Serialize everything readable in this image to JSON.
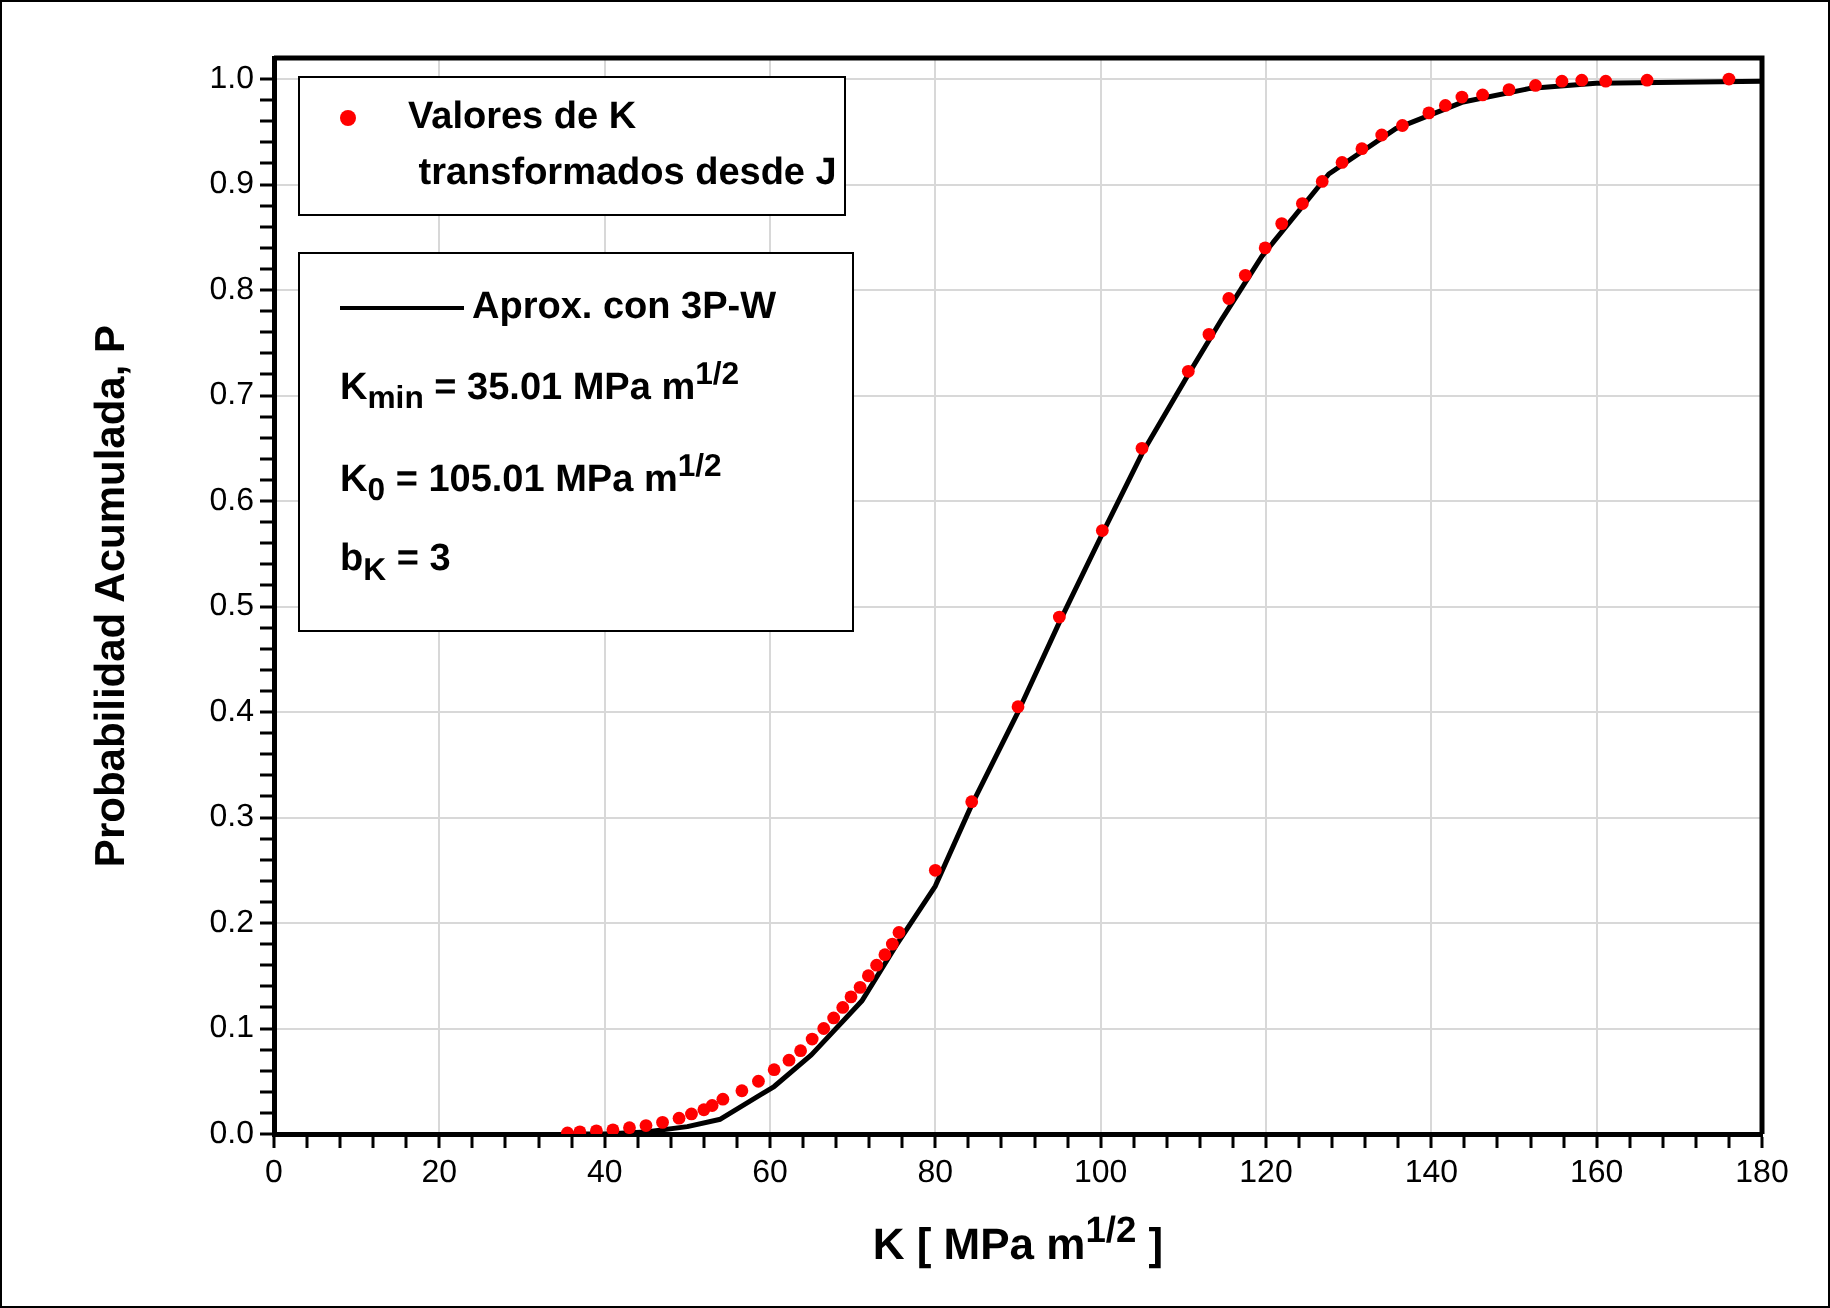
{
  "chart_data": {
    "type": "scatter",
    "xlabel": "K  [ MPa  m$^{1/2}$ ]",
    "ylabel": "Probabilidad Acumulada, P",
    "xlim": [
      0,
      180
    ],
    "ylim": [
      0,
      1.02
    ],
    "xticks": [
      0,
      {
        "value": 4,
        "label": null
      },
      {
        "value": 8,
        "label": null
      },
      {
        "value": 12,
        "label": null
      },
      {
        "value": 16,
        "label": null
      },
      20,
      {
        "value": 24,
        "label": null
      },
      {
        "value": 28,
        "label": null
      },
      {
        "value": 32,
        "label": null
      },
      {
        "value": 36,
        "label": null
      },
      40,
      {
        "value": 44,
        "label": null
      },
      {
        "value": 48,
        "label": null
      },
      {
        "value": 52,
        "label": null
      },
      {
        "value": 56,
        "label": null
      },
      60,
      {
        "value": 64,
        "label": null
      },
      {
        "value": 68,
        "label": null
      },
      {
        "value": 72,
        "label": null
      },
      {
        "value": 76,
        "label": null
      },
      80,
      {
        "value": 84,
        "label": null
      },
      {
        "value": 88,
        "label": null
      },
      {
        "value": 92,
        "label": null
      },
      {
        "value": 96,
        "label": null
      },
      100,
      {
        "value": 104,
        "label": null
      },
      {
        "value": 108,
        "label": null
      },
      {
        "value": 112,
        "label": null
      },
      {
        "value": 116,
        "label": null
      },
      120,
      {
        "value": 124,
        "label": null
      },
      {
        "value": 128,
        "label": null
      },
      {
        "value": 132,
        "label": null
      },
      {
        "value": 136,
        "label": null
      },
      140,
      {
        "value": 144,
        "label": null
      },
      {
        "value": 148,
        "label": null
      },
      {
        "value": 152,
        "label": null
      },
      {
        "value": 156,
        "label": null
      },
      160,
      {
        "value": 164,
        "label": null
      },
      {
        "value": 168,
        "label": null
      },
      {
        "value": 172,
        "label": null
      },
      {
        "value": 176,
        "label": null
      },
      180
    ],
    "yticks": [
      {
        "value": 0,
        "label": "0.0"
      },
      {
        "value": 0.02,
        "label": null
      },
      {
        "value": 0.04,
        "label": null
      },
      {
        "value": 0.06,
        "label": null
      },
      {
        "value": 0.08,
        "label": null
      },
      0.1,
      {
        "value": 0.12,
        "label": null
      },
      {
        "value": 0.14,
        "label": null
      },
      {
        "value": 0.16,
        "label": null
      },
      {
        "value": 0.18,
        "label": null
      },
      0.2,
      {
        "value": 0.22,
        "label": null
      },
      {
        "value": 0.24,
        "label": null
      },
      {
        "value": 0.26,
        "label": null
      },
      {
        "value": 0.28,
        "label": null
      },
      0.3,
      {
        "value": 0.32,
        "label": null
      },
      {
        "value": 0.34,
        "label": null
      },
      {
        "value": 0.36,
        "label": null
      },
      {
        "value": 0.38,
        "label": null
      },
      0.4,
      {
        "value": 0.42,
        "label": null
      },
      {
        "value": 0.44,
        "label": null
      },
      {
        "value": 0.46,
        "label": null
      },
      {
        "value": 0.48,
        "label": null
      },
      0.5,
      {
        "value": 0.52,
        "label": null
      },
      {
        "value": 0.54,
        "label": null
      },
      {
        "value": 0.56,
        "label": null
      },
      {
        "value": 0.58,
        "label": null
      },
      0.6,
      {
        "value": 0.62,
        "label": null
      },
      {
        "value": 0.64,
        "label": null
      },
      {
        "value": 0.66,
        "label": null
      },
      {
        "value": 0.68,
        "label": null
      },
      0.7,
      {
        "value": 0.72,
        "label": null
      },
      {
        "value": 0.74,
        "label": null
      },
      {
        "value": 0.76,
        "label": null
      },
      {
        "value": 0.78,
        "label": null
      },
      0.8,
      {
        "value": 0.82,
        "label": null
      },
      {
        "value": 0.84,
        "label": null
      },
      {
        "value": 0.86,
        "label": null
      },
      {
        "value": 0.88,
        "label": null
      },
      0.9,
      {
        "value": 0.92,
        "label": null
      },
      {
        "value": 0.94,
        "label": null
      },
      {
        "value": 0.96,
        "label": null
      },
      {
        "value": 0.98,
        "label": null
      },
      {
        "value": 1,
        "label": "1.0"
      }
    ],
    "grid": true,
    "legend": "top left",
    "marker": "circle",
    "series": [
      {
        "name": "Valores de K\n transformados desde J",
        "color": "#ff0000",
        "x": [
          35.5,
          37,
          39,
          41,
          43,
          45,
          47,
          49,
          50.5,
          52,
          53,
          54.3,
          56.6,
          58.6,
          60.5,
          62.3,
          63.7,
          65.1,
          66.5,
          67.7,
          68.8,
          69.8,
          70.9,
          71.9,
          72.9,
          73.9,
          74.8,
          75.6,
          80,
          84.4,
          90,
          95,
          100.2,
          105,
          110.6,
          113.1,
          115.5,
          117.5,
          119.9,
          121.9,
          124.4,
          126.8,
          129.2,
          131.6,
          134,
          136.5,
          139.7,
          141.7,
          143.7,
          146.2,
          149.4,
          152.6,
          155.8,
          158.2,
          161.1,
          166.1,
          176
        ],
        "values": [
          0.001,
          0.002,
          0.003,
          0.004,
          0.006,
          0.008,
          0.011,
          0.015,
          0.019,
          0.023,
          0.027,
          0.033,
          0.041,
          0.05,
          0.061,
          0.07,
          0.079,
          0.09,
          0.1,
          0.11,
          0.12,
          0.13,
          0.139,
          0.15,
          0.16,
          0.17,
          0.18,
          0.191,
          0.25,
          0.315,
          0.405,
          0.49,
          0.572,
          0.65,
          0.723,
          0.758,
          0.792,
          0.814,
          0.84,
          0.863,
          0.882,
          0.903,
          0.921,
          0.934,
          0.947,
          0.956,
          0.968,
          0.975,
          0.983,
          0.985,
          0.99,
          0.994,
          0.998,
          0.999,
          0.998,
          0.999,
          1.0
        ]
      },
      {
        "name": "Aprox. con 3P-W",
        "type": "line",
        "color": "#000000",
        "marker": "none",
        "line_style": "solid",
        "x": [
          35.01,
          40,
          45,
          50,
          54,
          60.5,
          65,
          71.1,
          75.2,
          80,
          84.4,
          90,
          95,
          100.2,
          105,
          110.6,
          114.7,
          119.5,
          127.6,
          135.7,
          143.7,
          151.8,
          159.9,
          180
        ],
        "values": [
          0,
          0,
          0.002,
          0.007,
          0.014,
          0.045,
          0.075,
          0.126,
          0.178,
          0.235,
          0.312,
          0.4,
          0.485,
          0.569,
          0.645,
          0.72,
          0.773,
          0.832,
          0.91,
          0.953,
          0.978,
          0.991,
          0.996,
          0.998
        ]
      }
    ],
    "annotations": [
      "K$_{min}$ = 35.01 MPa m$^{1/2}$",
      "K$_{0}$ = 105.01 MPa m$^{1/2}$",
      "b$_{K}$ = 3"
    ]
  }
}
